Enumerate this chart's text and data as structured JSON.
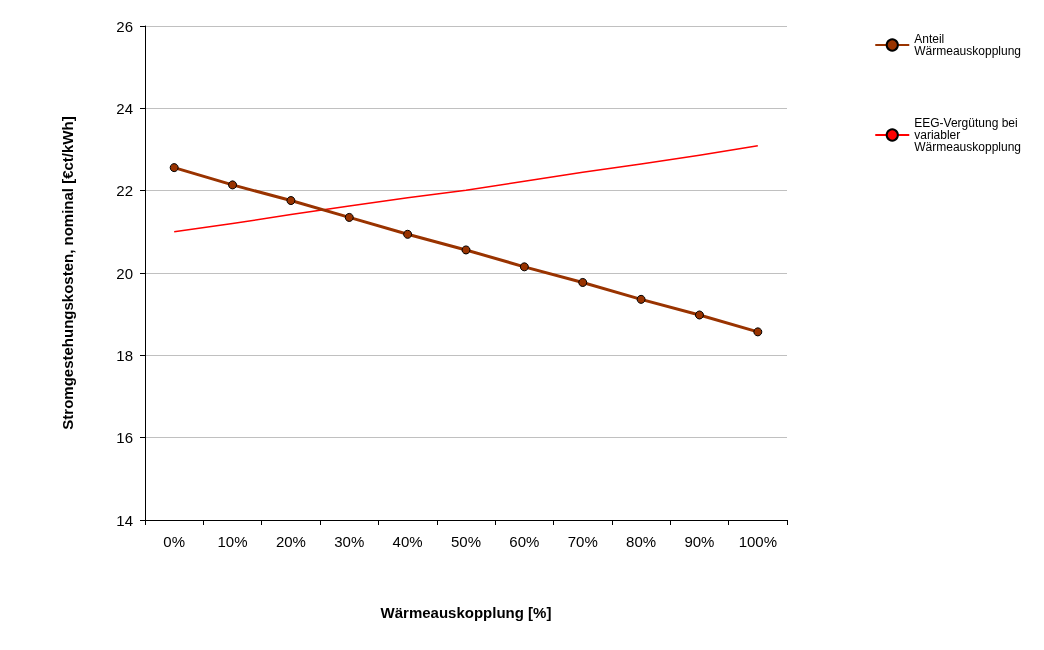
{
  "chart_data": {
    "type": "line",
    "xlabel": "Wärmeauskopplung [%]",
    "ylabel": "Stromgestehungskosten, nominal [€ct/kWh]",
    "categories": [
      "0%",
      "10%",
      "20%",
      "30%",
      "40%",
      "50%",
      "60%",
      "70%",
      "80%",
      "90%",
      "100%"
    ],
    "series": [
      {
        "name": "Anteil Wärmeauskopplung",
        "color": "#993300",
        "marker": "circle",
        "values": [
          22.56,
          22.14,
          21.76,
          21.35,
          20.94,
          20.56,
          20.15,
          19.77,
          19.36,
          18.98,
          18.57
        ]
      },
      {
        "name": "EEG-Vergütung bei variabler Wärmeauskopplung",
        "color": "#ff0000",
        "marker": "none",
        "values": [
          21.0,
          21.2,
          21.42,
          21.63,
          21.83,
          22.01,
          22.23,
          22.45,
          22.65,
          22.86,
          23.09
        ]
      }
    ],
    "ylim": [
      14,
      26
    ],
    "yticks": [
      14,
      16,
      18,
      20,
      22,
      24,
      26
    ],
    "grid": "y",
    "legend": "right"
  }
}
